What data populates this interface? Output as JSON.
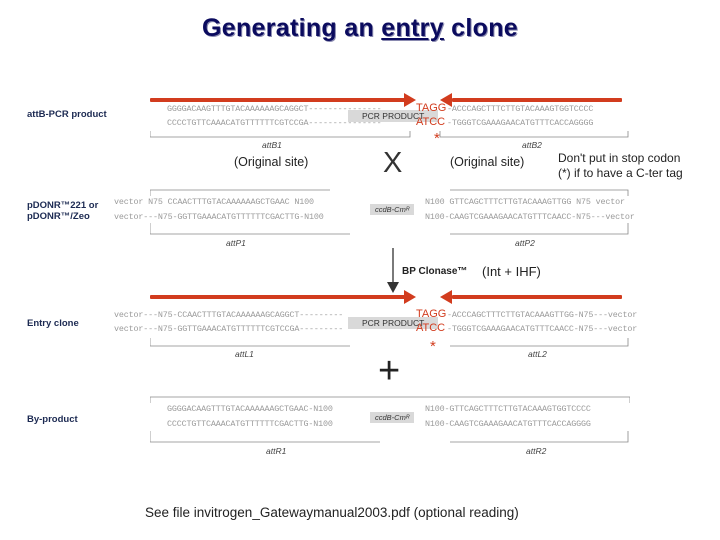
{
  "title": {
    "part1": "Generating  an ",
    "entry": "entry",
    "part2": " clone"
  },
  "attb_pcr": {
    "label": "attB-PCR product",
    "top_seq": "GGGGACAAGTTTGTACAAAAAAGCAGGCT---------------",
    "bottom_seq": "CCCCTGTTCAAACATGTTTTTTCGTCCGA---------------",
    "pcr_product": "PCR PRODUCT",
    "tagg": "TAGG",
    "atcc": "ATCC",
    "right_top_seq": "-ACCCAGCTTTCTTGTACAAAGTGGTCCCC",
    "right_bottom_seq": "-TGGGTCGAAAGAACATGTTTCACCAGGGG",
    "star": "*",
    "attb1": "attB1",
    "attb2": "attB2"
  },
  "recombination": {
    "left_site": "(Original site)",
    "x": "X",
    "right_site": "(Original site)",
    "note_line1": "Don't put in stop codon",
    "note_line2": "(*) if to have a C-ter tag"
  },
  "pdonr": {
    "label_line1": "pDONR™221 or",
    "label_line2": "pDONR™/Zeo",
    "top_seq": "vector  N75 CCAACTTTGTACAAAAAAGCTGAAC N100",
    "bottom_seq": "vector---N75-GGTTGAAACATGTTTTTTCGACTTG-N100",
    "ccdb": "ccdB-Cmᴿ",
    "right_top_seq": "N100  GTTCAGCTTTCTTGTACAAAGTTGG N75  vector",
    "right_bottom_seq": "N100-CAAGTCGAAAGAACATGTTTCAACC-N75---vector",
    "attp1": "attP1",
    "attp2": "attP2"
  },
  "clonase": {
    "label": "BP Clonase™",
    "sub": "(Int + IHF)"
  },
  "entry_clone": {
    "label": "Entry clone",
    "top_seq": "vector---N75-CCAACTTTGTACAAAAAAGCAGGCT---------",
    "bottom_seq": "vector---N75-GGTTGAAACATGTTTTTTCGTCCGA---------",
    "pcr_product": "PCR PRODUCT",
    "tagg": "TAGG",
    "atcc": "ATCC",
    "right_top_seq": "-ACCCAGCTTTCTTGTACAAAGTTGG-N75---vector",
    "right_bottom_seq": "-TGGGTCGAAAGAACATGTTTCAACC-N75---vector",
    "star": "*",
    "attl1": "attL1",
    "attl2": "attL2"
  },
  "plus": "+",
  "byproduct": {
    "label": "By-product",
    "top_seq": "GGGGACAAGTTTGTACAAAAAAGCTGAAC-N100",
    "bottom_seq": "CCCCTGTTCAAACATGTTTTTTCGACTTG-N100",
    "ccdb": "ccdB-Cmᴿ",
    "right_top_seq": "N100-GTTCAGCTTTCTTGTACAAAGTGGTCCCC",
    "right_bottom_seq": "N100-CAAGTCGAAAGAACATGTTTCACCAGGGG",
    "attr1": "attR1",
    "attr2": "attR2"
  },
  "footer": "See file invitrogen_Gatewaymanual2003.pdf (optional reading)",
  "colors": {
    "title": "#0b0b5e",
    "arrow_red": "#d23c1e",
    "label_blue": "#1c2a52",
    "sequence_gray": "#9a9a9a",
    "box_gray": "#d9d9d9"
  }
}
